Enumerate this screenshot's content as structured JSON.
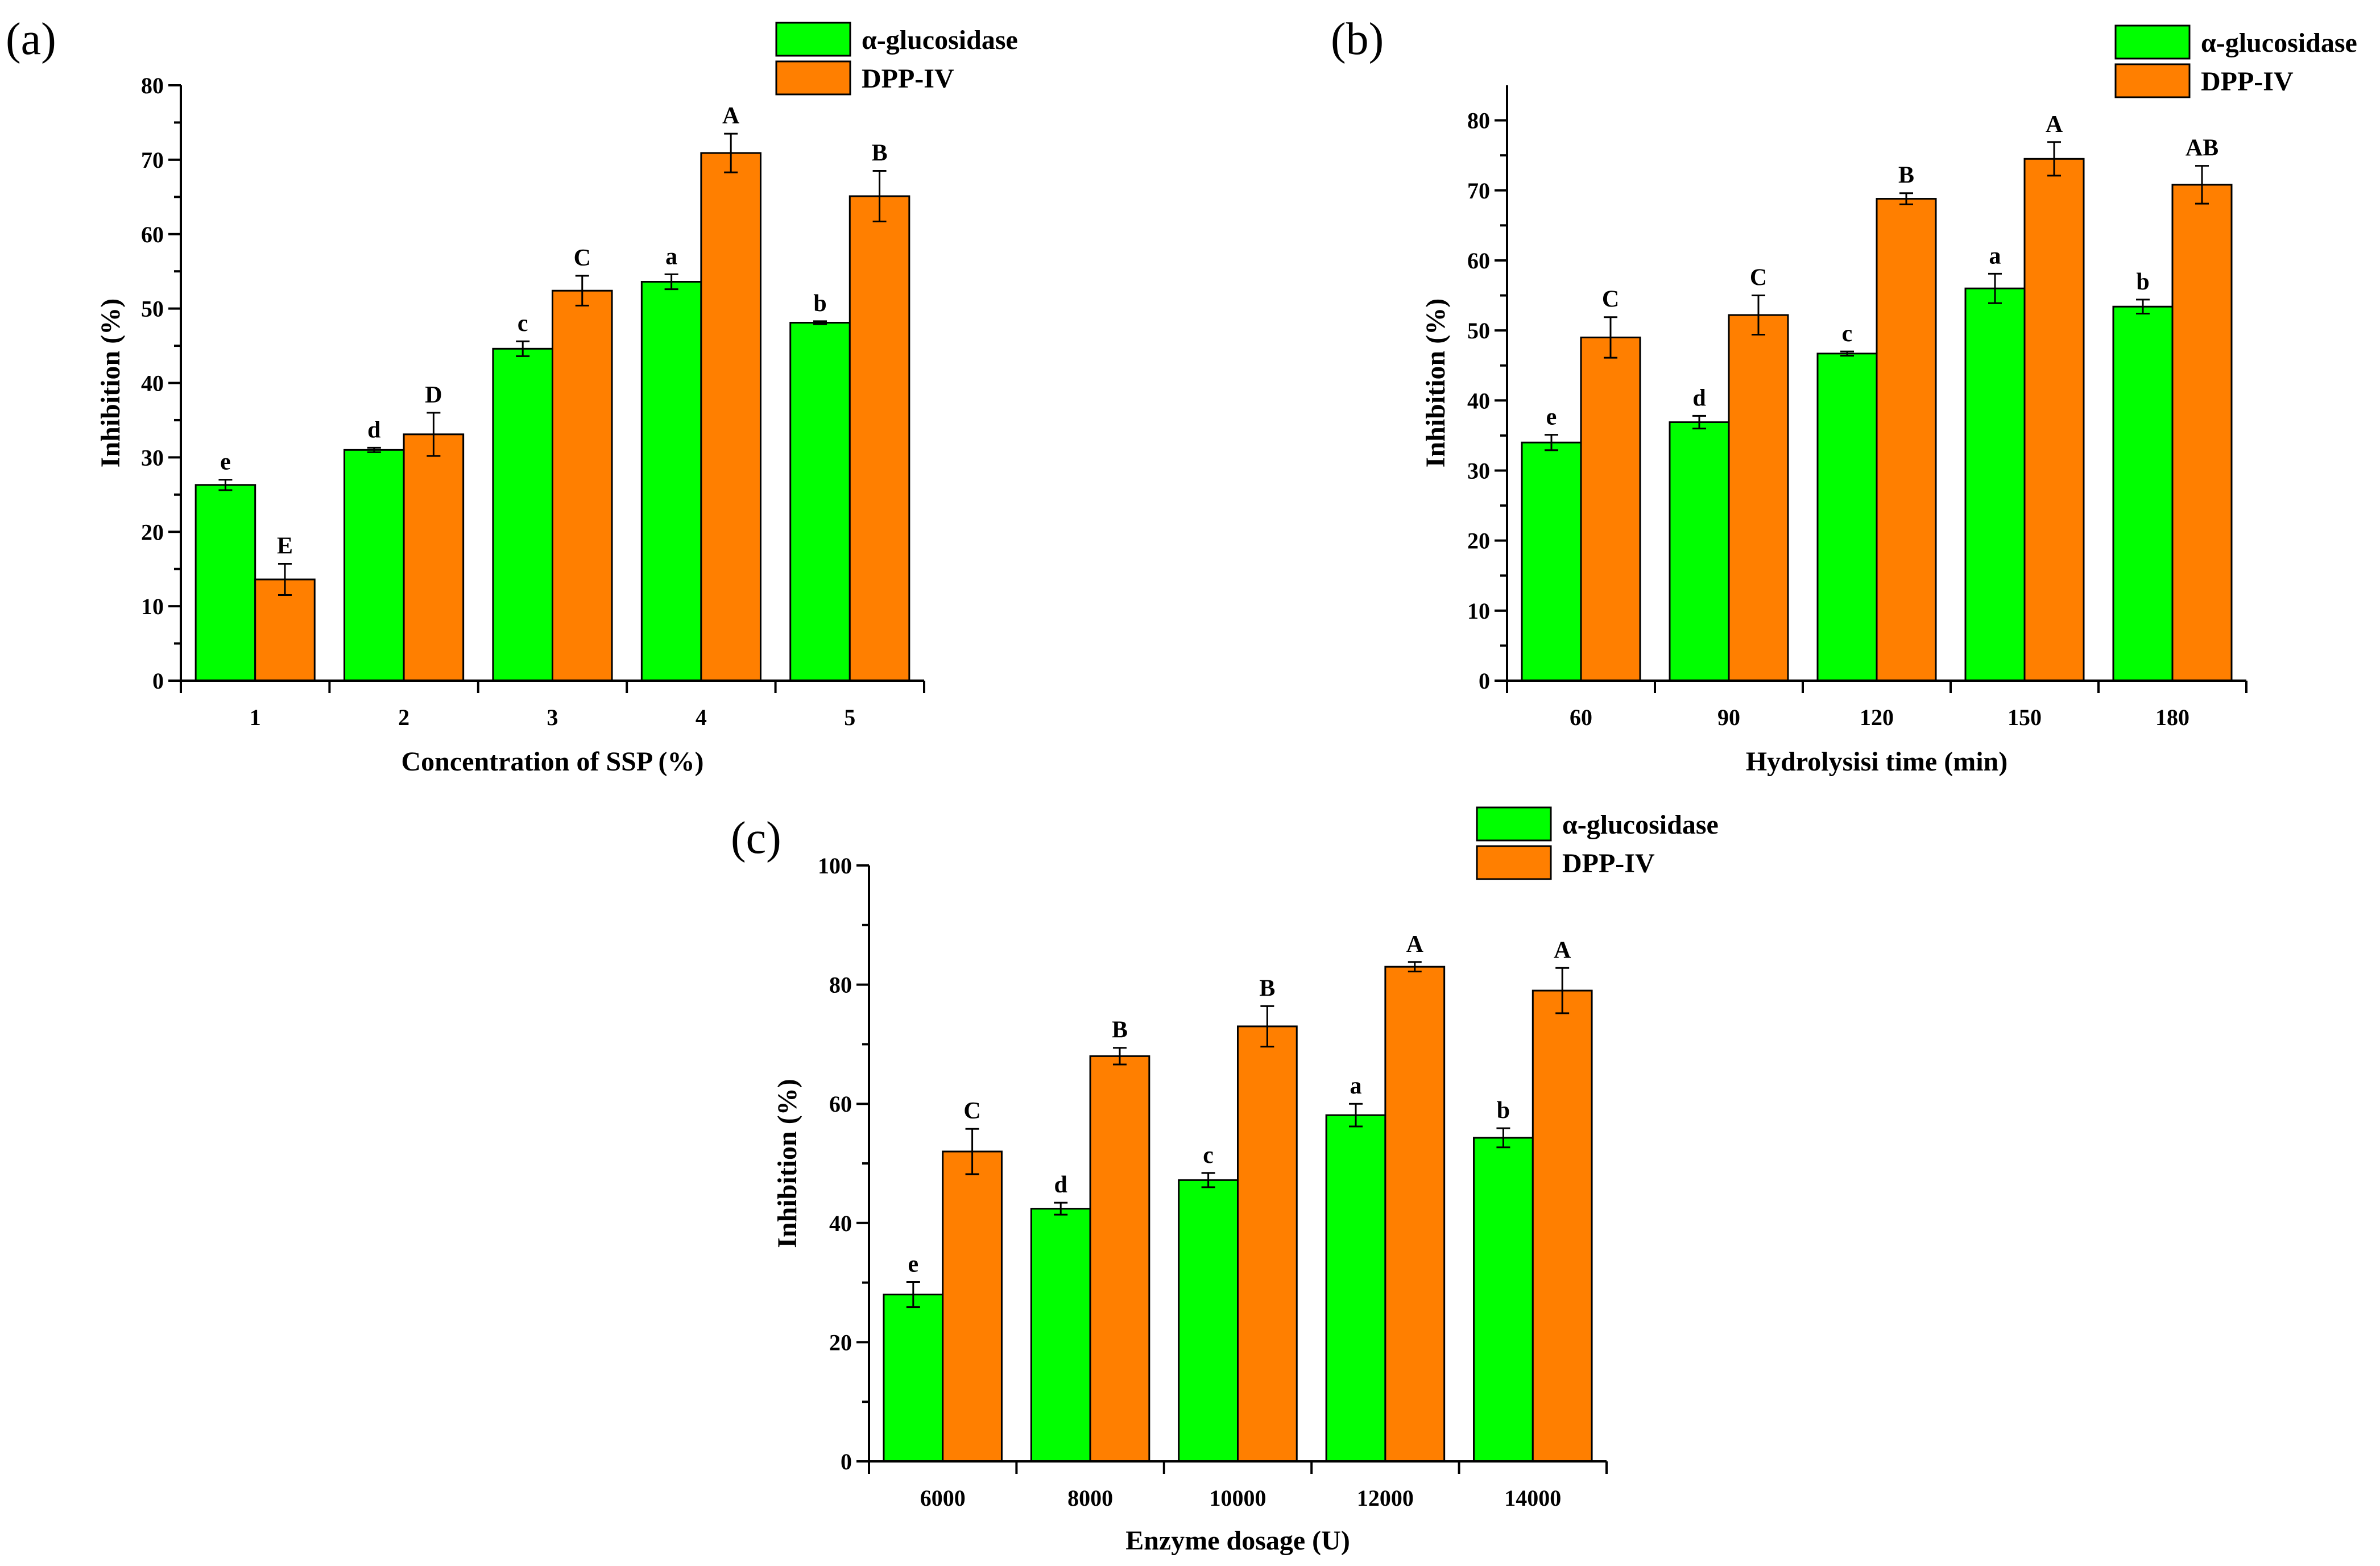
{
  "chart_data": [
    {
      "type": "bar",
      "panel": "(a)",
      "xlabel": "Concentration of SSP (%)",
      "ylabel": "Inhibition (%)",
      "ylim": [
        0,
        80
      ],
      "yticks": [
        0,
        10,
        20,
        30,
        40,
        50,
        60,
        70,
        80
      ],
      "categories": [
        "1",
        "2",
        "3",
        "4",
        "5"
      ],
      "legend": "top-right",
      "series": [
        {
          "name": "α-glucosidase",
          "color": "#00ff00",
          "values": [
            26.3,
            31.0,
            44.6,
            53.6,
            48.1
          ],
          "errors": [
            0.7,
            0.3,
            1.0,
            1.0,
            0.2
          ],
          "labels": [
            "e",
            "d",
            "c",
            "a",
            "b"
          ]
        },
        {
          "name": "DPP-IV",
          "color": "#ff7f00",
          "values": [
            13.6,
            33.1,
            52.4,
            70.9,
            65.1
          ],
          "errors": [
            2.1,
            2.9,
            2.0,
            2.6,
            3.4
          ],
          "labels": [
            "E",
            "D",
            "C",
            "A",
            "B"
          ]
        }
      ]
    },
    {
      "type": "bar",
      "panel": "(b)",
      "xlabel": "Hydrolysisi time (min)",
      "ylabel": "Inhibition (%)",
      "ylim": [
        0,
        85
      ],
      "yticks": [
        0,
        10,
        20,
        30,
        40,
        50,
        60,
        70,
        80
      ],
      "categories": [
        "60",
        "90",
        "120",
        "150",
        "180"
      ],
      "legend": "top-right",
      "series": [
        {
          "name": "α-glucosidase",
          "color": "#00ff00",
          "values": [
            34.0,
            36.9,
            46.7,
            56.0,
            53.4
          ],
          "errors": [
            1.1,
            0.9,
            0.3,
            2.1,
            1.0
          ],
          "labels": [
            "e",
            "d",
            "c",
            "a",
            "b"
          ]
        },
        {
          "name": "DPP-IV",
          "color": "#ff7f00",
          "values": [
            49.0,
            52.2,
            68.8,
            74.5,
            70.8
          ],
          "errors": [
            2.9,
            2.8,
            0.8,
            2.4,
            2.7
          ],
          "labels": [
            "C",
            "C",
            "B",
            "A",
            "AB"
          ]
        }
      ]
    },
    {
      "type": "bar",
      "panel": "(c)",
      "xlabel": "Enzyme dosage (U)",
      "ylabel": "Inhibition (%)",
      "ylim": [
        0,
        100
      ],
      "yticks": [
        0,
        20,
        40,
        60,
        80,
        100
      ],
      "categories": [
        "6000",
        "8000",
        "10000",
        "12000",
        "14000"
      ],
      "legend": "top-right",
      "series": [
        {
          "name": "α-glucosidase",
          "color": "#00ff00",
          "values": [
            28.0,
            42.4,
            47.2,
            58.1,
            54.3
          ],
          "errors": [
            2.1,
            1.0,
            1.2,
            1.9,
            1.6
          ],
          "labels": [
            "e",
            "d",
            "c",
            "a",
            "b"
          ]
        },
        {
          "name": "DPP-IV",
          "color": "#ff7f00",
          "values": [
            52.0,
            68.0,
            73.0,
            83.0,
            79.0
          ],
          "errors": [
            3.8,
            1.4,
            3.4,
            0.8,
            3.8
          ],
          "labels": [
            "C",
            "B",
            "B",
            "A",
            "A"
          ]
        }
      ]
    }
  ]
}
